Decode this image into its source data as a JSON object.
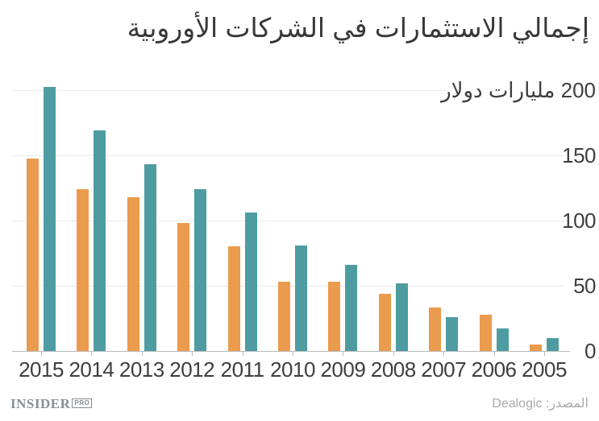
{
  "title": "إجمالي الاستثمارات في الشركات الأوروبية",
  "chart_data": {
    "type": "bar",
    "title": "إجمالي الاستثمارات في الشركات الأوروبية",
    "categories": [
      "2015",
      "2014",
      "2013",
      "2012",
      "2011",
      "2010",
      "2009",
      "2008",
      "2007",
      "2006",
      "2005"
    ],
    "series": [
      {
        "name": "orange",
        "color": "#EB9B4D",
        "values": [
          147,
          124,
          118,
          98,
          80,
          53,
          53,
          44,
          33,
          28,
          5
        ]
      },
      {
        "name": "teal",
        "color": "#4E9CA1",
        "values": [
          202,
          169,
          143,
          124,
          106,
          81,
          66,
          52,
          26,
          17,
          10
        ]
      }
    ],
    "ylabel": "مليارات دولار",
    "ylim": [
      0,
      200
    ],
    "yticks": [
      0,
      50,
      100,
      150,
      200
    ],
    "ytick_labels": [
      "0",
      "50",
      "100",
      "150",
      "200 مليارات دولار"
    ],
    "grid": true,
    "legend_position": "none",
    "yaxis_side": "right",
    "xlabel": ""
  },
  "footer": {
    "logo_main": "INSIDER",
    "logo_sub": "PRO",
    "source": "المصدر: Dealogic"
  },
  "colors": {
    "bar_orange": "#EB9B4D",
    "bar_teal": "#4E9CA1",
    "gridline": "#E9E9E9",
    "axis_line": "#B9B9B9",
    "title_text": "#383838",
    "tick_text": "#3E3E3E",
    "footer_gray": "#A8A8A8",
    "logo_gray": "#878E96",
    "background": "#FFFFFF"
  }
}
